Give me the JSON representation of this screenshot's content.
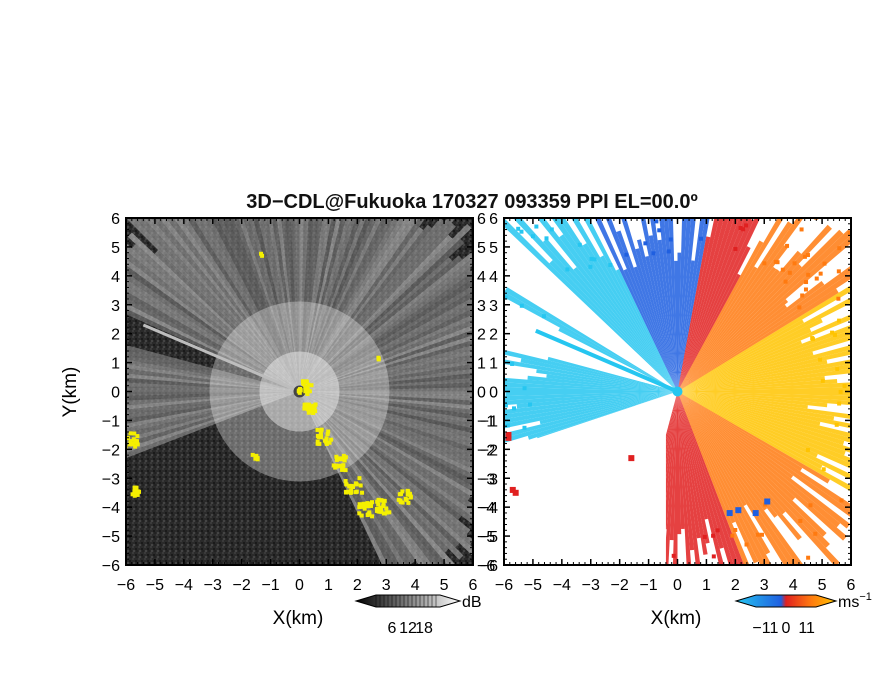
{
  "title": "3D−CDL@Fukuoka 170327 093359 PPI EL=00.0º",
  "chart_data": [
    {
      "type": "heatmap",
      "panel": "left",
      "quantity": "reflectivity",
      "xlabel": "X(km)",
      "ylabel": "Y(km)",
      "xlim": [
        -6,
        6
      ],
      "ylim": [
        -6,
        6
      ],
      "ticks": [
        "−6",
        "−5",
        "−4",
        "−3",
        "−2",
        "−1",
        "0",
        "1",
        "2",
        "3",
        "4",
        "5",
        "6"
      ],
      "colorbar": {
        "unit": "dB",
        "tick_labels": [
          "6",
          "12",
          "18"
        ],
        "ticks": [
          6,
          12,
          18
        ],
        "range": [
          0,
          24
        ]
      },
      "colors": {
        "background": "#2b2b2b",
        "bright": "#e6e6e6",
        "flag": "#f5f000"
      }
    },
    {
      "type": "heatmap",
      "panel": "right",
      "quantity": "doppler velocity",
      "xlabel": "X(km)",
      "xlim": [
        -6,
        6
      ],
      "ylim": [
        -6,
        6
      ],
      "ticks": [
        "−6",
        "−5",
        "−4",
        "−3",
        "−2",
        "−1",
        "0",
        "1",
        "2",
        "3",
        "4",
        "5",
        "6"
      ],
      "colorbar": {
        "unit": "ms",
        "unit_exponent": "−1",
        "tick_labels": [
          "−11",
          "0",
          "11"
        ],
        "ticks": [
          -11,
          0,
          11
        ],
        "range": [
          -16,
          16
        ]
      },
      "colors": {
        "negative_light": "#26c6f0",
        "negative": "#1f5fe0",
        "zero": "#e02020",
        "positive": "#ff7a10",
        "positive_light": "#ffc400"
      }
    }
  ]
}
